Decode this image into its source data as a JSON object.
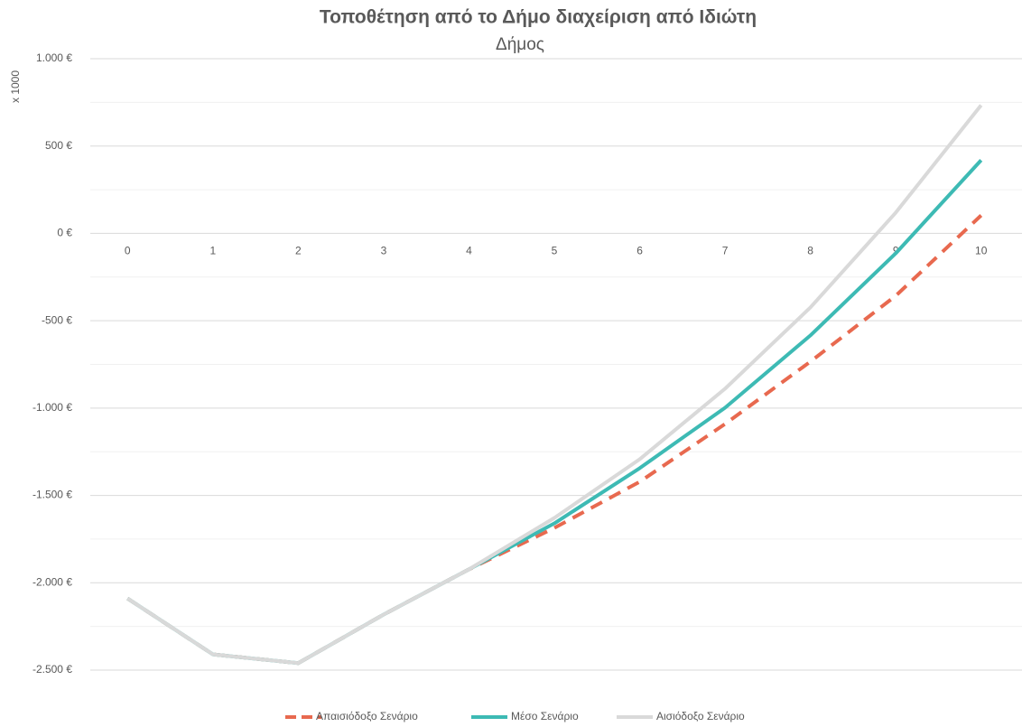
{
  "chart_data": {
    "type": "line",
    "title": "Τοποθέτηση από το Δήμο διαχείριση από Ιδιώτη",
    "subtitle": "Δήμος",
    "y_axis_label": "x 1000",
    "categories": [
      "0",
      "1",
      "2",
      "3",
      "4",
      "5",
      "6",
      "7",
      "8",
      "9",
      "10"
    ],
    "series": [
      {
        "name": "Απαισιόδοξο Σενάριο",
        "color": "#e8694f",
        "dashed": true,
        "values": [
          -2090,
          -2410,
          -2460,
          -2182,
          -1923,
          -1686,
          -1422,
          -1091,
          -734,
          -357,
          103
        ]
      },
      {
        "name": "Μέσο Σενάριο",
        "color": "#3dbab4",
        "dashed": false,
        "values": [
          -2090,
          -2410,
          -2460,
          -2182,
          -1923,
          -1660,
          -1344,
          -998,
          -584,
          -114,
          419
        ]
      },
      {
        "name": "Αισιόδοξο Σενάριο",
        "color": "#d9d9d9",
        "dashed": false,
        "values": [
          -2090,
          -2410,
          -2460,
          -2182,
          -1923,
          -1629,
          -1293,
          -889,
          -424,
          119,
          734
        ]
      }
    ],
    "ylim": [
      -2500,
      1000
    ],
    "yticks": [
      {
        "value": 1000,
        "label": "1.000 €"
      },
      {
        "value": 500,
        "label": "500 €"
      },
      {
        "value": 0,
        "label": "0 €"
      },
      {
        "value": -500,
        "label": "-500 €"
      },
      {
        "value": -1000,
        "label": "-1.000 €"
      },
      {
        "value": -1500,
        "label": "-1.500 €"
      },
      {
        "value": -2000,
        "label": "-2.000 €"
      },
      {
        "value": -2500,
        "label": "-2.500 €"
      }
    ],
    "grid": true,
    "minor_grid": true,
    "legend": "bottom"
  }
}
